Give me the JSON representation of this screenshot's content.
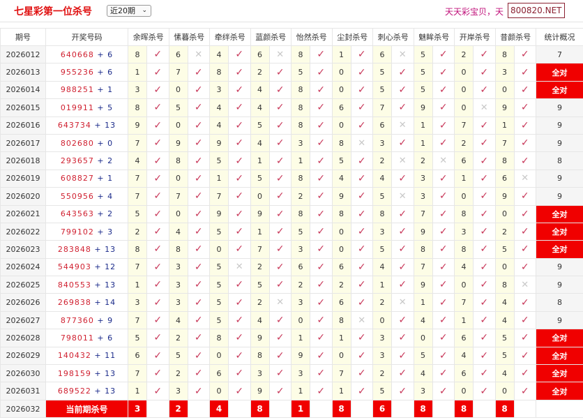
{
  "header": {
    "title": "七星彩第一位杀号",
    "range_select": "近20期",
    "marquee": "天天彩宝贝，天",
    "watermark": "800820.NET"
  },
  "table": {
    "columns": [
      "期号",
      "开奖号码",
      "余晖杀号",
      "愫暮杀号",
      "牵绊杀号",
      "蓝颜杀号",
      "怡然杀号",
      "尘封杀号",
      "刺心杀号",
      "魅眸杀号",
      "开岸杀号",
      "昔颜杀号",
      "统计概况"
    ],
    "rows": [
      {
        "period": "2026012",
        "numbers": "640668",
        "extra": "6",
        "kills": [
          8,
          6,
          4,
          6,
          8,
          1,
          6,
          5,
          2,
          8
        ],
        "hits": [
          1,
          0,
          1,
          0,
          1,
          1,
          0,
          1,
          1,
          1
        ],
        "stat": "7"
      },
      {
        "period": "2026013",
        "numbers": "955236",
        "extra": "6",
        "kills": [
          1,
          7,
          8,
          2,
          5,
          0,
          5,
          5,
          0,
          3
        ],
        "hits": [
          1,
          1,
          1,
          1,
          1,
          1,
          1,
          1,
          1,
          1
        ],
        "stat": "全对"
      },
      {
        "period": "2026014",
        "numbers": "988251",
        "extra": "1",
        "kills": [
          3,
          0,
          3,
          4,
          8,
          0,
          5,
          5,
          0,
          0
        ],
        "hits": [
          1,
          1,
          1,
          1,
          1,
          1,
          1,
          1,
          1,
          1
        ],
        "stat": "全对"
      },
      {
        "period": "2026015",
        "numbers": "019911",
        "extra": "5",
        "kills": [
          8,
          5,
          4,
          4,
          8,
          6,
          7,
          9,
          0,
          9
        ],
        "hits": [
          1,
          1,
          1,
          1,
          1,
          1,
          1,
          1,
          0,
          1
        ],
        "stat": "9"
      },
      {
        "period": "2026016",
        "numbers": "643734",
        "extra": "13",
        "kills": [
          9,
          0,
          4,
          5,
          8,
          0,
          6,
          1,
          7,
          1
        ],
        "hits": [
          1,
          1,
          1,
          1,
          1,
          1,
          0,
          1,
          1,
          1
        ],
        "stat": "9"
      },
      {
        "period": "2026017",
        "numbers": "802680",
        "extra": "0",
        "kills": [
          7,
          9,
          9,
          4,
          3,
          8,
          3,
          1,
          2,
          7
        ],
        "hits": [
          1,
          1,
          1,
          1,
          1,
          0,
          1,
          1,
          1,
          1
        ],
        "stat": "9"
      },
      {
        "period": "2026018",
        "numbers": "293657",
        "extra": "2",
        "kills": [
          4,
          8,
          5,
          1,
          1,
          5,
          2,
          2,
          6,
          8
        ],
        "hits": [
          1,
          1,
          1,
          1,
          1,
          1,
          0,
          0,
          1,
          1
        ],
        "stat": "8"
      },
      {
        "period": "2026019",
        "numbers": "608827",
        "extra": "1",
        "kills": [
          7,
          0,
          1,
          5,
          8,
          4,
          4,
          3,
          1,
          6
        ],
        "hits": [
          1,
          1,
          1,
          1,
          1,
          1,
          1,
          1,
          1,
          0
        ],
        "stat": "9"
      },
      {
        "period": "2026020",
        "numbers": "550956",
        "extra": "4",
        "kills": [
          7,
          7,
          7,
          0,
          2,
          9,
          5,
          3,
          0,
          9
        ],
        "hits": [
          1,
          1,
          1,
          1,
          1,
          1,
          0,
          1,
          1,
          1
        ],
        "stat": "9"
      },
      {
        "period": "2026021",
        "numbers": "643563",
        "extra": "2",
        "kills": [
          5,
          0,
          9,
          9,
          8,
          8,
          8,
          7,
          8,
          0
        ],
        "hits": [
          1,
          1,
          1,
          1,
          1,
          1,
          1,
          1,
          1,
          1
        ],
        "stat": "全对"
      },
      {
        "period": "2026022",
        "numbers": "799102",
        "extra": "3",
        "kills": [
          2,
          4,
          5,
          1,
          5,
          0,
          3,
          9,
          3,
          2
        ],
        "hits": [
          1,
          1,
          1,
          1,
          1,
          1,
          1,
          1,
          1,
          1
        ],
        "stat": "全对"
      },
      {
        "period": "2026023",
        "numbers": "283848",
        "extra": "13",
        "kills": [
          8,
          8,
          0,
          7,
          3,
          0,
          5,
          8,
          8,
          5
        ],
        "hits": [
          1,
          1,
          1,
          1,
          1,
          1,
          1,
          1,
          1,
          1
        ],
        "stat": "全对"
      },
      {
        "period": "2026024",
        "numbers": "544903",
        "extra": "12",
        "kills": [
          7,
          3,
          5,
          2,
          6,
          6,
          4,
          7,
          4,
          0
        ],
        "hits": [
          1,
          1,
          0,
          1,
          1,
          1,
          1,
          1,
          1,
          1
        ],
        "stat": "9"
      },
      {
        "period": "2026025",
        "numbers": "840553",
        "extra": "13",
        "kills": [
          1,
          3,
          5,
          5,
          2,
          2,
          1,
          9,
          0,
          8
        ],
        "hits": [
          1,
          1,
          1,
          1,
          1,
          1,
          1,
          1,
          1,
          0
        ],
        "stat": "9"
      },
      {
        "period": "2026026",
        "numbers": "269838",
        "extra": "14",
        "kills": [
          3,
          3,
          5,
          2,
          3,
          6,
          2,
          1,
          7,
          4
        ],
        "hits": [
          1,
          1,
          1,
          0,
          1,
          1,
          0,
          1,
          1,
          1
        ],
        "stat": "8"
      },
      {
        "period": "2026027",
        "numbers": "877360",
        "extra": "9",
        "kills": [
          7,
          4,
          5,
          4,
          0,
          8,
          0,
          4,
          1,
          4
        ],
        "hits": [
          1,
          1,
          1,
          1,
          1,
          0,
          1,
          1,
          1,
          1
        ],
        "stat": "9"
      },
      {
        "period": "2026028",
        "numbers": "798011",
        "extra": "6",
        "kills": [
          5,
          2,
          8,
          9,
          1,
          1,
          3,
          0,
          6,
          5
        ],
        "hits": [
          1,
          1,
          1,
          1,
          1,
          1,
          1,
          1,
          1,
          1
        ],
        "stat": "全对"
      },
      {
        "period": "2026029",
        "numbers": "140432",
        "extra": "11",
        "kills": [
          6,
          5,
          0,
          8,
          9,
          0,
          3,
          5,
          4,
          5
        ],
        "hits": [
          1,
          1,
          1,
          1,
          1,
          1,
          1,
          1,
          1,
          1
        ],
        "stat": "全对"
      },
      {
        "period": "2026030",
        "numbers": "198159",
        "extra": "13",
        "kills": [
          7,
          2,
          6,
          3,
          3,
          7,
          2,
          4,
          6,
          4
        ],
        "hits": [
          1,
          1,
          1,
          1,
          1,
          1,
          1,
          1,
          1,
          1
        ],
        "stat": "全对"
      },
      {
        "period": "2026031",
        "numbers": "689522",
        "extra": "13",
        "kills": [
          1,
          3,
          0,
          9,
          1,
          1,
          5,
          3,
          0,
          0
        ],
        "hits": [
          1,
          1,
          1,
          1,
          1,
          1,
          1,
          1,
          1,
          1
        ],
        "stat": "全对"
      }
    ],
    "current": {
      "period": "2026032",
      "label": "当前期杀号",
      "kills": [
        3,
        2,
        4,
        8,
        1,
        8,
        6,
        8,
        8,
        8
      ]
    },
    "marks": {
      "hit": "✓",
      "miss": "✕"
    }
  },
  "colors": {
    "accent": "#f00000",
    "hit": "#c8385a",
    "miss": "#c8c8c8",
    "kill_cell": "#fdfde6"
  }
}
